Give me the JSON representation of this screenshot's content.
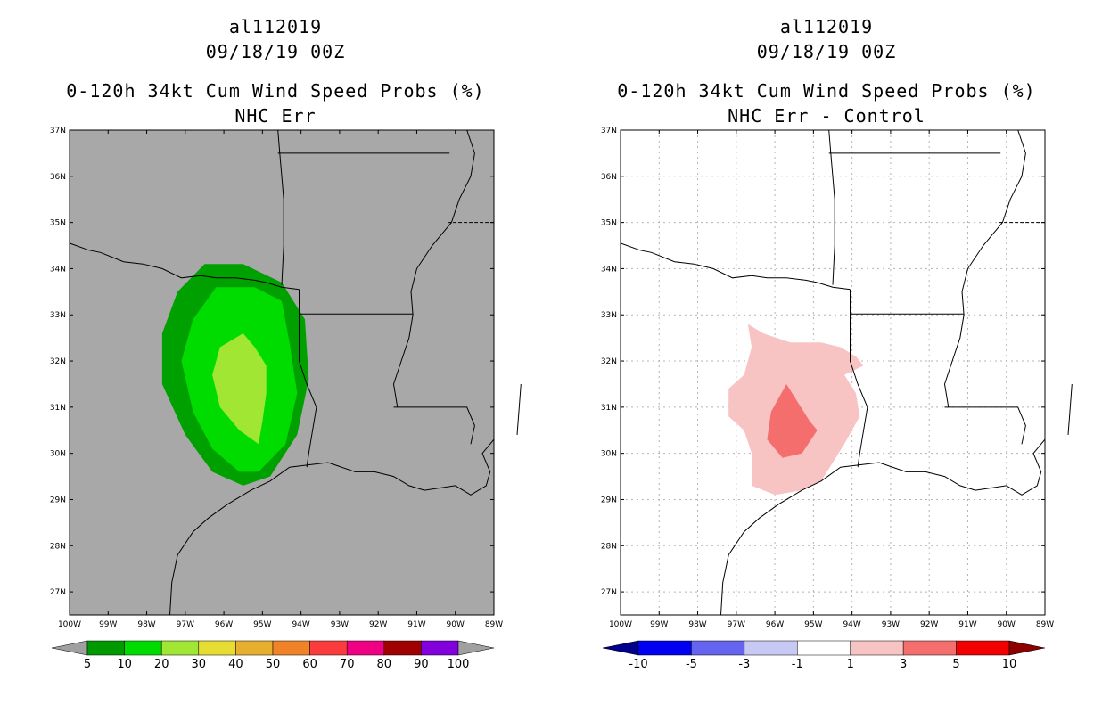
{
  "chart_data": [
    {
      "type": "heatmap",
      "storm_id": "al112019",
      "datetime": "09/18/19 00Z",
      "title": "0-120h 34kt Cum Wind Speed Probs (%)",
      "subtitle": "NHC Err",
      "x_ticks": [
        "100W",
        "99W",
        "98W",
        "97W",
        "96W",
        "95W",
        "94W",
        "93W",
        "92W",
        "91W",
        "90W",
        "89W"
      ],
      "y_ticks": [
        "27N",
        "28N",
        "29N",
        "30N",
        "31N",
        "32N",
        "33N",
        "34N",
        "35N",
        "36N",
        "37N"
      ],
      "lon_range": [
        -100,
        -89
      ],
      "lat_range": [
        26.5,
        37
      ],
      "background_color": "#a8a8a8",
      "colorbar": {
        "labels": [
          "5",
          "10",
          "20",
          "30",
          "40",
          "50",
          "60",
          "70",
          "80",
          "90",
          "100"
        ],
        "colors": [
          "#009a00",
          "#00dc00",
          "#a0e632",
          "#e6dc32",
          "#e6af2d",
          "#f08228",
          "#fa3c3c",
          "#f00082",
          "#a00000",
          "#8200dc",
          "#a0a0a0"
        ]
      },
      "contours": [
        {
          "level": 5,
          "color": "#00a000",
          "points": [
            [
              -96.5,
              34.1
            ],
            [
              -95.5,
              34.1
            ],
            [
              -94.5,
              33.7
            ],
            [
              -93.9,
              32.9
            ],
            [
              -93.8,
              31.6
            ],
            [
              -94.1,
              30.4
            ],
            [
              -94.8,
              29.5
            ],
            [
              -95.5,
              29.3
            ],
            [
              -96.3,
              29.6
            ],
            [
              -97,
              30.4
            ],
            [
              -97.6,
              31.5
            ],
            [
              -97.6,
              32.6
            ],
            [
              -97.2,
              33.5
            ]
          ]
        },
        {
          "level": 10,
          "color": "#00dc00",
          "points": [
            [
              -96.2,
              33.6
            ],
            [
              -95.2,
              33.6
            ],
            [
              -94.5,
              33.3
            ],
            [
              -94.3,
              32.4
            ],
            [
              -94.1,
              31.3
            ],
            [
              -94.4,
              30.2
            ],
            [
              -95.1,
              29.6
            ],
            [
              -95.6,
              29.6
            ],
            [
              -96.3,
              30.1
            ],
            [
              -96.8,
              30.9
            ],
            [
              -97.1,
              32
            ],
            [
              -96.8,
              32.9
            ]
          ]
        },
        {
          "level": 20,
          "color": "#a0e632",
          "points": [
            [
              -95.5,
              32.6
            ],
            [
              -95.2,
              32.3
            ],
            [
              -94.9,
              31.9
            ],
            [
              -94.9,
              31.3
            ],
            [
              -95,
              30.7
            ],
            [
              -95.1,
              30.2
            ],
            [
              -95.6,
              30.5
            ],
            [
              -96.1,
              31
            ],
            [
              -96.3,
              31.7
            ],
            [
              -96.1,
              32.3
            ]
          ]
        }
      ]
    },
    {
      "type": "heatmap",
      "storm_id": "al112019",
      "datetime": "09/18/19 00Z",
      "title": "0-120h 34kt Cum Wind Speed Probs (%)",
      "subtitle": "NHC Err - Control",
      "x_ticks": [
        "100W",
        "99W",
        "98W",
        "97W",
        "96W",
        "95W",
        "94W",
        "93W",
        "92W",
        "91W",
        "90W",
        "89W"
      ],
      "y_ticks": [
        "27N",
        "28N",
        "29N",
        "30N",
        "31N",
        "32N",
        "33N",
        "34N",
        "35N",
        "36N",
        "37N"
      ],
      "lon_range": [
        -100,
        -89
      ],
      "lat_range": [
        26.5,
        37
      ],
      "background_color": "#ffffff",
      "colorbar": {
        "labels": [
          "-10",
          "-5",
          "-3",
          "-1",
          "1",
          "3",
          "5",
          "10"
        ],
        "colors": [
          "#00008c",
          "#0000f0",
          "#6464f0",
          "#c8c8f5",
          "#ffffff",
          "#f8c3c3",
          "#f56e6e",
          "#f00000",
          "#8c0000"
        ]
      },
      "contours": [
        {
          "level": 1,
          "color": "#f8c3c3",
          "points": [
            [
              -96.7,
              32.8
            ],
            [
              -96.3,
              32.6
            ],
            [
              -95.6,
              32.4
            ],
            [
              -94.8,
              32.4
            ],
            [
              -94.3,
              32.3
            ],
            [
              -93.9,
              32.1
            ],
            [
              -93.7,
              31.9
            ],
            [
              -94.2,
              31.7
            ],
            [
              -93.9,
              31.3
            ],
            [
              -93.8,
              30.8
            ],
            [
              -94.2,
              30.2
            ],
            [
              -94.8,
              29.4
            ],
            [
              -95.3,
              29.2
            ],
            [
              -96,
              29.1
            ],
            [
              -96.6,
              29.3
            ],
            [
              -96.6,
              30
            ],
            [
              -96.8,
              30.5
            ],
            [
              -97.2,
              30.8
            ],
            [
              -97.2,
              31.4
            ],
            [
              -96.8,
              31.7
            ],
            [
              -96.6,
              32.3
            ]
          ]
        },
        {
          "level": 3,
          "color": "#f56e6e",
          "points": [
            [
              -95.7,
              31.5
            ],
            [
              -95.4,
              31.1
            ],
            [
              -95.1,
              30.7
            ],
            [
              -94.9,
              30.5
            ],
            [
              -95.3,
              30
            ],
            [
              -95.8,
              29.9
            ],
            [
              -96.2,
              30.3
            ],
            [
              -96.1,
              30.9
            ]
          ]
        }
      ]
    }
  ]
}
